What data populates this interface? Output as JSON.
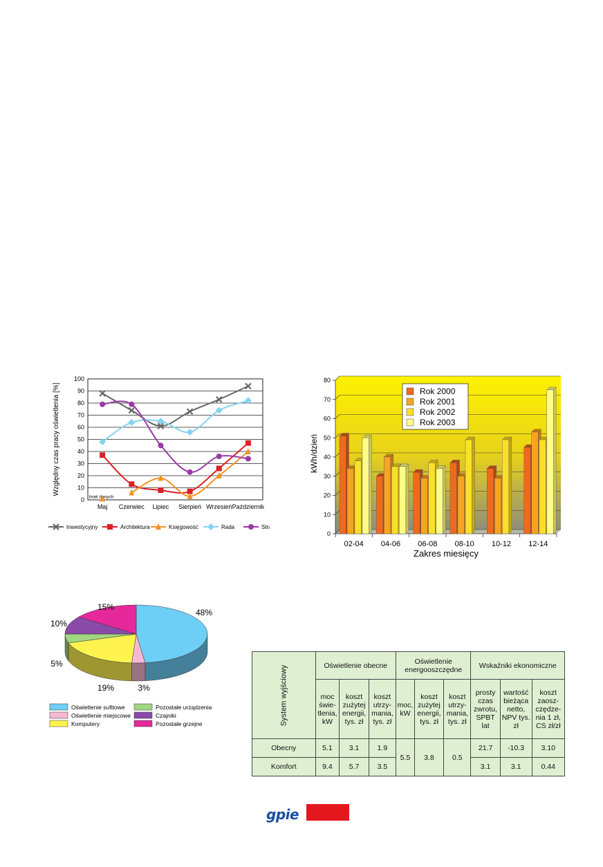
{
  "line_chart": {
    "ylabel": "Względny czas pracy oświetlenia [%]",
    "note": "brak danych",
    "legend": [
      "Inwestycyjny",
      "Architektura",
      "Księgowość",
      "Rada",
      "Straż"
    ]
  },
  "bar_chart": {
    "ylabel": "kWh/dzień",
    "xlabel": "Zakres miesięcy",
    "legend": [
      "Rok 2000",
      "Rok 2001",
      "Rok 2002",
      "Rok 2003"
    ]
  },
  "pie_chart": {
    "legend": [
      "Oświetlenie sufitowe",
      "Pozostałe urządzenia",
      "Oświetlenie miejscowe",
      "Czajniki",
      "Komputery",
      "Pozostałe grzejne"
    ]
  },
  "chart_data": [
    {
      "type": "line",
      "ylabel": "Względny czas pracy oświetlenia [%]",
      "categories": [
        "Maj",
        "Czerwiec",
        "Lipiec",
        "Sierpień",
        "Wrzesień",
        "Październik"
      ],
      "ylim": [
        0,
        100
      ],
      "yticks": [
        0,
        10,
        20,
        30,
        40,
        50,
        60,
        70,
        80,
        90,
        100
      ],
      "grid": true,
      "legend_position": "bottom",
      "series": [
        {
          "name": "Inwestycyjny",
          "color": "#666666",
          "marker": "x",
          "values": [
            88,
            74,
            61,
            73,
            83,
            94
          ]
        },
        {
          "name": "Architektura",
          "color": "#dd1f26",
          "marker": "square",
          "values": [
            37,
            13,
            8,
            7,
            26,
            47
          ]
        },
        {
          "name": "Księgowość",
          "color": "#f39121",
          "marker": "triangle",
          "values": [
            null,
            6,
            18,
            3,
            20,
            40
          ]
        },
        {
          "name": "Rada",
          "color": "#86d3f0",
          "marker": "diamond",
          "values": [
            48,
            64,
            65,
            56,
            74,
            82
          ]
        },
        {
          "name": "Straż",
          "color": "#9a3aa6",
          "marker": "circle",
          "values": [
            79,
            79,
            45,
            23,
            36,
            34
          ]
        }
      ]
    },
    {
      "type": "bar",
      "ylabel": "kWh/dzień",
      "xlabel": "Zakres miesięcy",
      "categories": [
        "02-04",
        "04-06",
        "06-08",
        "08-10",
        "10-12",
        "12-14"
      ],
      "ylim": [
        0,
        80
      ],
      "yticks": [
        0,
        10,
        20,
        30,
        40,
        50,
        60,
        70,
        80
      ],
      "grid": true,
      "legend_position": "top",
      "series": [
        {
          "name": "Rok 2000",
          "color": "#f06a1c",
          "values": [
            51,
            30,
            32,
            37,
            34,
            45
          ]
        },
        {
          "name": "Rok 2001",
          "color": "#f7a520",
          "values": [
            34,
            40,
            29,
            30,
            29,
            53
          ]
        },
        {
          "name": "Rok 2002",
          "color": "#fbe02a",
          "values": [
            38,
            35,
            37,
            49,
            49,
            49
          ]
        },
        {
          "name": "Rok 2003",
          "color": "#fffc8a",
          "values": [
            50,
            35,
            34,
            null,
            null,
            75
          ]
        }
      ]
    },
    {
      "type": "pie",
      "categories": [
        "Oświetlenie sufitowe",
        "Oświetlenie miejscowe",
        "Komputery",
        "Pozostałe urządzenia",
        "Czajniki",
        "Pozostałe grzejne"
      ],
      "values": [
        48,
        3,
        19,
        5,
        10,
        15
      ],
      "labels": [
        "48%",
        "3%",
        "19%",
        "5%",
        "10%",
        "15%"
      ],
      "colors": [
        "#6dcff6",
        "#f6b9d4",
        "#fff44f",
        "#a1d780",
        "#8a4aa8",
        "#e5299a"
      ],
      "legend_position": "bottom"
    },
    {
      "type": "table",
      "corner": "System wyjściowy",
      "groups": [
        "Oświetlenie obecne",
        "Oświetlenie energooszczędne",
        "Wskaźniki ekonomiczne"
      ],
      "columns": [
        "moc świe- tlenia, kW",
        "koszt zużytej energii, tys. zł",
        "koszt utrzy- mania, tys. zł",
        "moc, kW",
        "koszt zużytej energii, tys. zł",
        "koszt utrzy- mania, tys. zł",
        "prosty czas zwrotu, SPBT lat",
        "wartość bieżąca netto, NPV tys. zł",
        "koszt zaosz- czędze- nia 1 zł, CS zł/zł"
      ],
      "rows": [
        {
          "label": "Obecny",
          "values": [
            "5.1",
            "3.1",
            "1.9",
            "5.5",
            "3.8",
            "0.5",
            "21.7",
            "-10.3",
            "3.10"
          ]
        },
        {
          "label": "Komfort",
          "values": [
            "9.4",
            "5.7",
            "3.5",
            "5.5",
            "3.8",
            "0.5",
            "3.1",
            "3.1",
            "0.44"
          ]
        }
      ]
    }
  ],
  "footer": {
    "logo_text": "gpie"
  }
}
